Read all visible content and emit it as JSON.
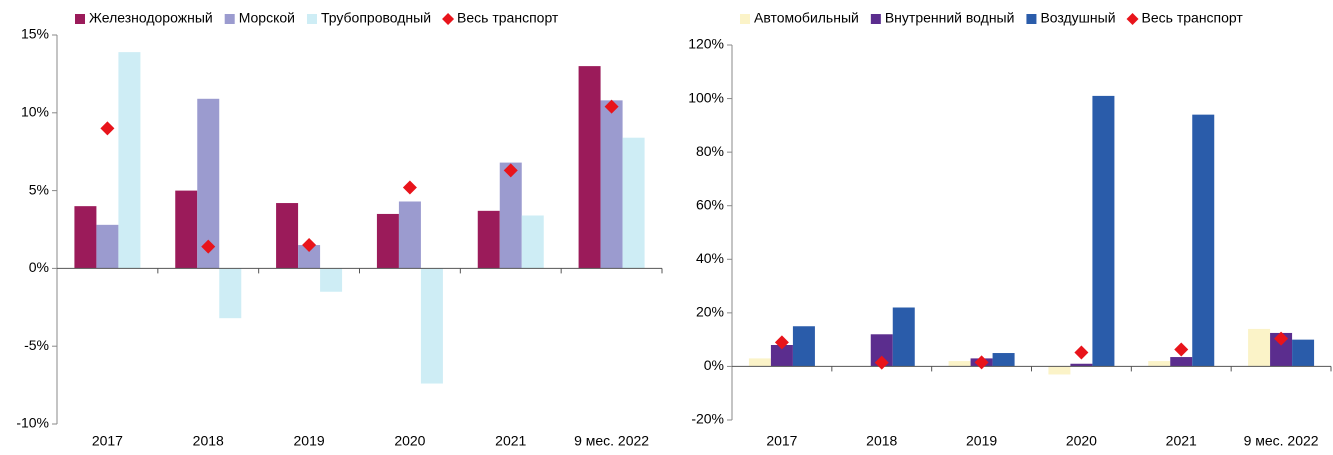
{
  "chart_data": [
    {
      "type": "bar",
      "categories": [
        "2017",
        "2018",
        "2019",
        "2020",
        "2021",
        "9 мес. 2022"
      ],
      "series": [
        {
          "name": "Железнодорожный",
          "color": "#9b1b5a",
          "values": [
            4.0,
            5.0,
            4.2,
            3.5,
            3.7,
            13.0
          ]
        },
        {
          "name": "Морской",
          "color": "#9b9bcf",
          "values": [
            2.8,
            10.9,
            1.5,
            4.3,
            6.8,
            10.8
          ]
        },
        {
          "name": "Трубопроводный",
          "color": "#ceedf5",
          "values": [
            13.9,
            -3.2,
            -1.5,
            -7.4,
            3.4,
            8.4
          ]
        },
        {
          "name": "Весь транспорт",
          "color": "#e8141b",
          "type": "point",
          "values": [
            9.0,
            1.4,
            1.5,
            5.2,
            6.3,
            10.4
          ]
        }
      ],
      "ylim": [
        -10,
        15
      ],
      "yticks": [
        {
          "value": -10,
          "label": "-10%"
        },
        {
          "value": -5,
          "label": "-5%"
        },
        {
          "value": 0,
          "label": "0%"
        },
        {
          "value": 5,
          "label": "5%"
        },
        {
          "value": 10,
          "label": "10%"
        },
        {
          "value": 15,
          "label": "15%"
        }
      ]
    },
    {
      "type": "bar",
      "categories": [
        "2017",
        "2018",
        "2019",
        "2020",
        "2021",
        "9 мес. 2022"
      ],
      "series": [
        {
          "name": "Автомобильный",
          "color": "#fbf3c8",
          "values": [
            3,
            0,
            2,
            -3,
            2,
            14
          ]
        },
        {
          "name": "Внутренний водный",
          "color": "#5b2d8e",
          "values": [
            8,
            12,
            3,
            1,
            3.5,
            12.5
          ]
        },
        {
          "name": "Воздушный",
          "color": "#2a5caa",
          "values": [
            15,
            22,
            5,
            101,
            94,
            10
          ]
        },
        {
          "name": "Весь транспорт",
          "color": "#e8141b",
          "type": "point",
          "values": [
            9,
            1.4,
            1.5,
            5.2,
            6.3,
            10.4
          ]
        }
      ],
      "ylim": [
        -20,
        120
      ],
      "yticks": [
        {
          "value": -20,
          "label": "-20%"
        },
        {
          "value": 0,
          "label": "0%"
        },
        {
          "value": 20,
          "label": "20%"
        },
        {
          "value": 40,
          "label": "40%"
        },
        {
          "value": 60,
          "label": "60%"
        },
        {
          "value": 80,
          "label": "80%"
        },
        {
          "value": 100,
          "label": "100%"
        },
        {
          "value": 120,
          "label": "120%"
        }
      ]
    }
  ]
}
